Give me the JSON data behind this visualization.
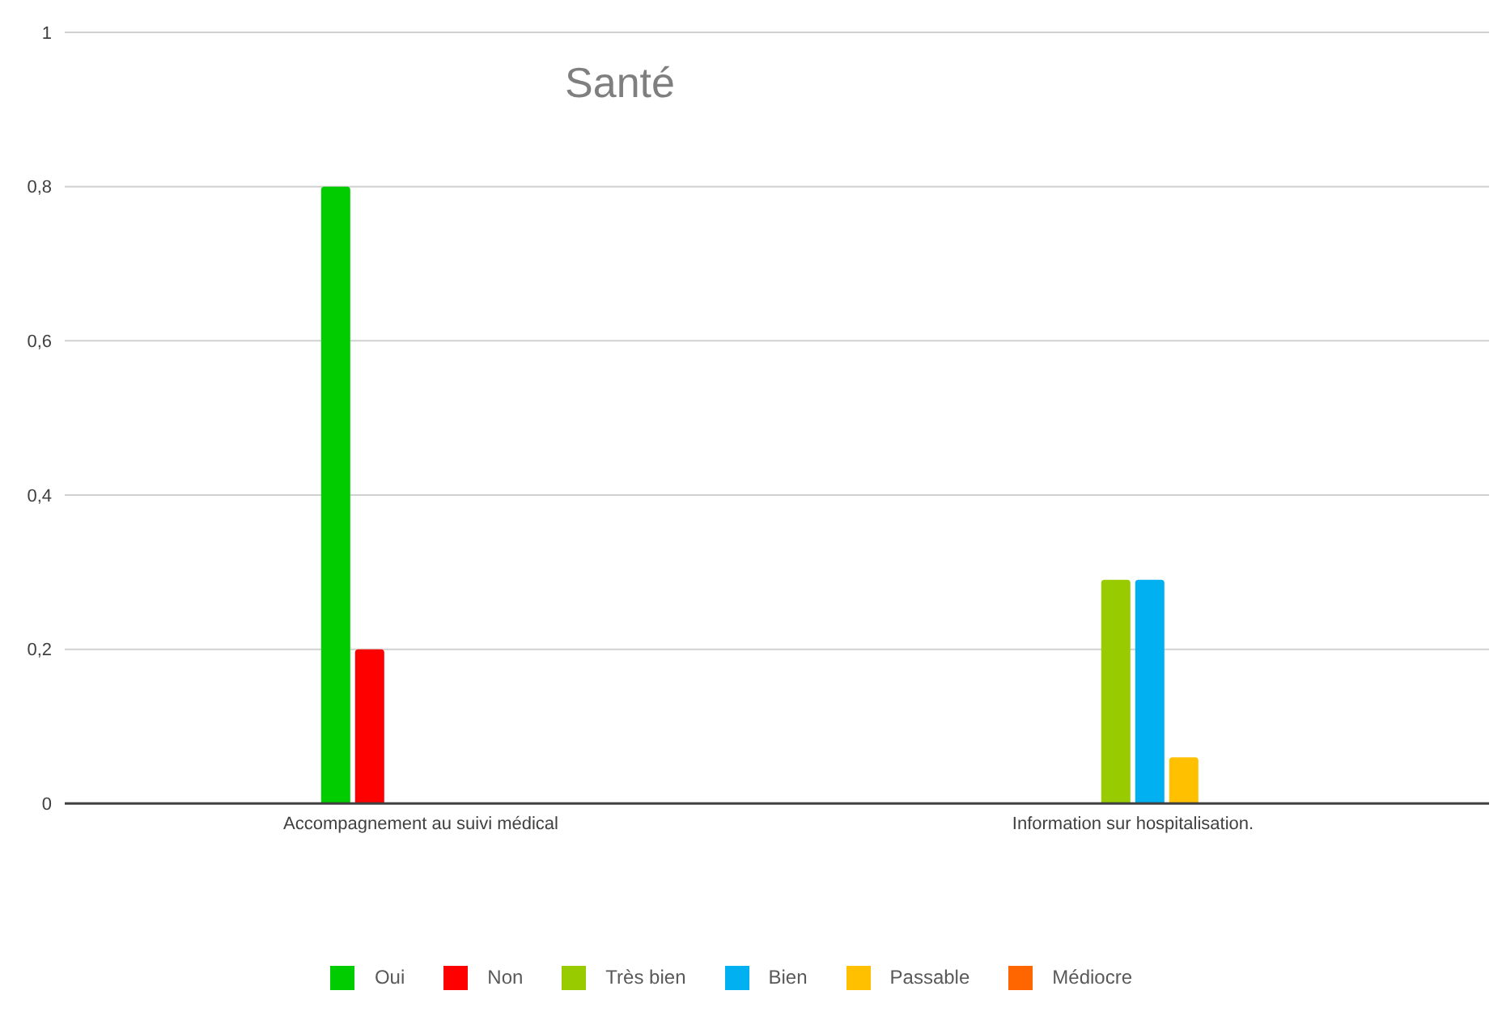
{
  "chart_data": {
    "type": "bar",
    "title": "Santé",
    "categories": [
      "Accompagnement au suivi médical",
      "Information sur hospitalisation."
    ],
    "series": [
      {
        "name": "Oui",
        "color": "#00cc00",
        "values": [
          0.8,
          null
        ]
      },
      {
        "name": "Non",
        "color": "#ff0000",
        "values": [
          0.2,
          null
        ]
      },
      {
        "name": "Très bien",
        "color": "#99cc00",
        "values": [
          null,
          0.29
        ]
      },
      {
        "name": "Bien",
        "color": "#00b0f0",
        "values": [
          null,
          0.29
        ]
      },
      {
        "name": "Passable",
        "color": "#ffc000",
        "values": [
          null,
          0.06
        ]
      },
      {
        "name": "Médiocre",
        "color": "#ff6600",
        "values": [
          null,
          null
        ]
      }
    ],
    "ylim": [
      0,
      1
    ],
    "yticks": [
      0,
      {
        "value": 0.2,
        "label": "0,2"
      },
      {
        "value": 0.4,
        "label": "0,4"
      },
      {
        "value": 0.6,
        "label": "0,6"
      },
      {
        "value": 0.8,
        "label": "0,8"
      },
      1
    ],
    "grid": "y",
    "legend": "bottom"
  }
}
